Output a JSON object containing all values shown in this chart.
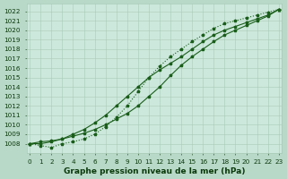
{
  "title": "Graphe pression niveau de la mer (hPa)",
  "x": [
    0,
    1,
    2,
    3,
    4,
    5,
    6,
    7,
    8,
    9,
    10,
    11,
    12,
    13,
    14,
    15,
    16,
    17,
    18,
    19,
    20,
    21,
    22,
    23
  ],
  "line1": [
    1008.0,
    1008.2,
    1008.3,
    1008.5,
    1008.8,
    1009.1,
    1009.5,
    1010.0,
    1010.6,
    1011.2,
    1012.0,
    1013.0,
    1014.0,
    1015.2,
    1016.3,
    1017.2,
    1018.0,
    1018.8,
    1019.5,
    1020.0,
    1020.5,
    1021.0,
    1021.5,
    1022.2
  ],
  "line2": [
    1008.0,
    1007.8,
    1007.6,
    1008.0,
    1008.2,
    1008.5,
    1009.0,
    1009.8,
    1010.8,
    1012.0,
    1013.5,
    1015.0,
    1016.2,
    1017.2,
    1018.0,
    1018.8,
    1019.5,
    1020.2,
    1020.7,
    1021.0,
    1021.3,
    1021.6,
    1021.9,
    1022.2
  ],
  "line3": [
    1008.0,
    1008.0,
    1008.2,
    1008.5,
    1009.0,
    1009.5,
    1010.2,
    1011.0,
    1012.0,
    1013.0,
    1014.0,
    1015.0,
    1015.8,
    1016.5,
    1017.2,
    1018.0,
    1018.8,
    1019.5,
    1020.0,
    1020.4,
    1020.8,
    1021.2,
    1021.6,
    1022.2
  ],
  "ylim": [
    1007.0,
    1022.8
  ],
  "yticks": [
    1008,
    1009,
    1010,
    1011,
    1012,
    1013,
    1014,
    1015,
    1016,
    1017,
    1018,
    1019,
    1020,
    1021,
    1022
  ],
  "bg_plot": "#cce8dc",
  "grid_color": "#aacab8",
  "line_color": "#1a5e1a",
  "line_color2": "#2a7a2a",
  "marker": "*",
  "marker_size": 2.5,
  "line_width": 0.8,
  "title_fontsize": 6.5,
  "tick_fontsize": 5.2,
  "title_color": "#0a3a0a",
  "bg_fig": "#b8d8c8"
}
